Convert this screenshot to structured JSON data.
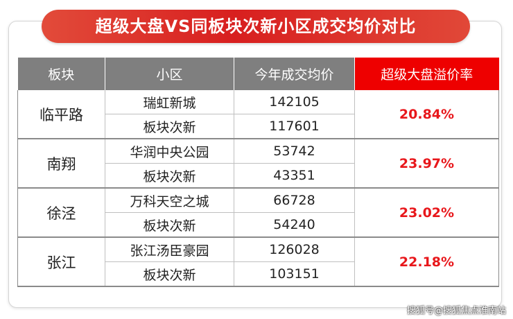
{
  "title": "超级大盘VS同板块次新小区成交均价对比",
  "headers": [
    "板块",
    "小区",
    "今年成交均价",
    "超级大盘溢价率"
  ],
  "colors": {
    "banner": "#d81f1f",
    "header_gray": "#7f7f7f",
    "header_red": "#ee0000",
    "rate_text": "#e8171b"
  },
  "chart_data": {
    "type": "table",
    "title": "超级大盘VS同板块次新小区成交均价对比",
    "columns": [
      "板块",
      "小区",
      "今年成交均价",
      "超级大盘溢价率"
    ],
    "groups": [
      {
        "district": "临平路",
        "rate": "20.84%",
        "rows": [
          {
            "name": "瑞虹新城",
            "price": "142105"
          },
          {
            "name": "板块次新",
            "price": "117601"
          }
        ]
      },
      {
        "district": "南翔",
        "rate": "23.97%",
        "rows": [
          {
            "name": "华润中央公园",
            "price": "53742"
          },
          {
            "name": "板块次新",
            "price": "43351"
          }
        ]
      },
      {
        "district": "徐泾",
        "rate": "23.02%",
        "rows": [
          {
            "name": "万科天空之城",
            "price": "66728"
          },
          {
            "name": "板块次新",
            "price": "54240"
          }
        ]
      },
      {
        "district": "张江",
        "rate": "22.18%",
        "rows": [
          {
            "name": "张江汤臣豪园",
            "price": "126028"
          },
          {
            "name": "板块次新",
            "price": "103151"
          }
        ]
      }
    ]
  },
  "watermark": "搜狐号@搜狐焦点淮南站"
}
